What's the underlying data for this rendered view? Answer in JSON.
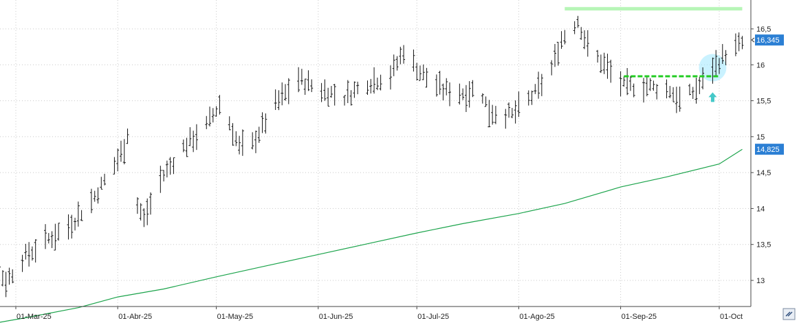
{
  "chart_data": {
    "type": "ohlc",
    "title": "",
    "xlabel": "",
    "ylabel": "",
    "ylim": [
      12.6,
      16.85
    ],
    "grid": true,
    "grid_style": "dotted",
    "y_ticks": [
      "16,5",
      "16",
      "15,5",
      "15",
      "14,5",
      "14",
      "13,5",
      "13"
    ],
    "y_tick_values": [
      16.5,
      16,
      15.5,
      15,
      14.5,
      14,
      13.5,
      13
    ],
    "x_ticks": [
      "01-Mar-25",
      "01-Abr-25",
      "01-May-25",
      "01-Jun-25",
      "01-Jul-25",
      "01-Ago-25",
      "01-Sep-25",
      "01-Oct"
    ],
    "x_tick_dates": [
      "2025-03-01",
      "2025-04-01",
      "2025-05-01",
      "2025-06-01",
      "2025-07-01",
      "2025-08-01",
      "2025-09-01",
      "2025-10-01"
    ],
    "last_price_label": "16,345",
    "last_price": 16.345,
    "ma_label": "14,825",
    "ma_last": 14.825,
    "colors": {
      "bars": "#111111",
      "moving_average": "#1aa34a",
      "resistance": "#b7f5b7",
      "support": "#22cc22",
      "highlight_circle": "#9fe8ff",
      "arrow": "#44c8c8",
      "price_tag": "#2b7fd4",
      "grid": "#c8c8c8"
    },
    "resistance_line": {
      "value": 16.78,
      "start": "2025-08-15",
      "end": "2025-10-08"
    },
    "support_line": {
      "value": 15.84,
      "start": "2025-09-02",
      "end": "2025-10-01"
    },
    "highlight_circle": {
      "date": "2025-09-29",
      "value": 15.96
    },
    "breakout_arrow": {
      "date": "2025-09-29",
      "value": 15.55
    },
    "moving_average": [
      {
        "date": "2025-02-13",
        "value": 12.33
      },
      {
        "date": "2025-03-04",
        "value": 12.48
      },
      {
        "date": "2025-03-20",
        "value": 12.62
      },
      {
        "date": "2025-04-01",
        "value": 12.77
      },
      {
        "date": "2025-04-15",
        "value": 12.88
      },
      {
        "date": "2025-05-01",
        "value": 13.05
      },
      {
        "date": "2025-05-15",
        "value": 13.19
      },
      {
        "date": "2025-06-02",
        "value": 13.37
      },
      {
        "date": "2025-06-16",
        "value": 13.51
      },
      {
        "date": "2025-07-01",
        "value": 13.66
      },
      {
        "date": "2025-07-15",
        "value": 13.79
      },
      {
        "date": "2025-08-01",
        "value": 13.93
      },
      {
        "date": "2025-08-15",
        "value": 14.07
      },
      {
        "date": "2025-09-01",
        "value": 14.3
      },
      {
        "date": "2025-09-15",
        "value": 14.44
      },
      {
        "date": "2025-10-01",
        "value": 14.62
      },
      {
        "date": "2025-10-08",
        "value": 14.825
      }
    ],
    "ohlc_waypoints": [
      {
        "date": "2025-02-11",
        "value": 13.58
      },
      {
        "date": "2025-02-18",
        "value": 13.5
      },
      {
        "date": "2025-02-24",
        "value": 13.12
      },
      {
        "date": "2025-02-26",
        "value": 12.98
      },
      {
        "date": "2025-03-03",
        "value": 13.3
      },
      {
        "date": "2025-03-10",
        "value": 13.55
      },
      {
        "date": "2025-03-17",
        "value": 13.75
      },
      {
        "date": "2025-03-24",
        "value": 14.1
      },
      {
        "date": "2025-03-31",
        "value": 14.6
      },
      {
        "date": "2025-04-03",
        "value": 14.85
      },
      {
        "date": "2025-04-04",
        "value": 15.05
      },
      {
        "date": "2025-04-07",
        "value": 14.05
      },
      {
        "date": "2025-04-09",
        "value": 13.85
      },
      {
        "date": "2025-04-14",
        "value": 14.4
      },
      {
        "date": "2025-04-21",
        "value": 14.85
      },
      {
        "date": "2025-04-28",
        "value": 15.15
      },
      {
        "date": "2025-05-02",
        "value": 15.45
      },
      {
        "date": "2025-05-05",
        "value": 15.2
      },
      {
        "date": "2025-05-08",
        "value": 14.85
      },
      {
        "date": "2025-05-12",
        "value": 14.9
      },
      {
        "date": "2025-05-19",
        "value": 15.45
      },
      {
        "date": "2025-05-26",
        "value": 15.8
      },
      {
        "date": "2025-06-02",
        "value": 15.65
      },
      {
        "date": "2025-06-09",
        "value": 15.55
      },
      {
        "date": "2025-06-16",
        "value": 15.75
      },
      {
        "date": "2025-06-23",
        "value": 15.85
      },
      {
        "date": "2025-06-27",
        "value": 16.2
      },
      {
        "date": "2025-07-02",
        "value": 15.9
      },
      {
        "date": "2025-07-09",
        "value": 15.65
      },
      {
        "date": "2025-07-16",
        "value": 15.6
      },
      {
        "date": "2025-07-20",
        "value": 15.7
      },
      {
        "date": "2025-07-23",
        "value": 15.35
      },
      {
        "date": "2025-07-30",
        "value": 15.3
      },
      {
        "date": "2025-08-06",
        "value": 15.6
      },
      {
        "date": "2025-08-11",
        "value": 15.95
      },
      {
        "date": "2025-08-14",
        "value": 16.35
      },
      {
        "date": "2025-08-19",
        "value": 16.62
      },
      {
        "date": "2025-08-22",
        "value": 16.25
      },
      {
        "date": "2025-08-28",
        "value": 15.95
      },
      {
        "date": "2025-09-02",
        "value": 15.7
      },
      {
        "date": "2025-09-09",
        "value": 15.7
      },
      {
        "date": "2025-09-16",
        "value": 15.65
      },
      {
        "date": "2025-09-19",
        "value": 15.5
      },
      {
        "date": "2025-09-24",
        "value": 15.65
      },
      {
        "date": "2025-09-29",
        "value": 15.95
      },
      {
        "date": "2025-10-03",
        "value": 16.15
      },
      {
        "date": "2025-10-08",
        "value": 16.3
      }
    ]
  },
  "ui": {
    "corner_icon": "double-chevron-icon"
  }
}
